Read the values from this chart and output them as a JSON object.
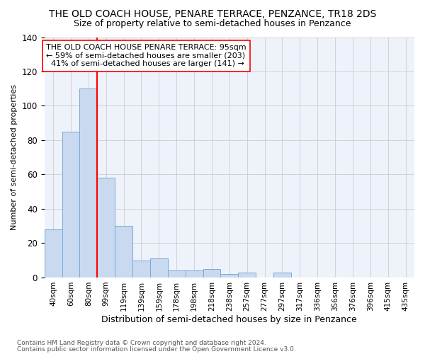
{
  "title": "THE OLD COACH HOUSE, PENARE TERRACE, PENZANCE, TR18 2DS",
  "subtitle": "Size of property relative to semi-detached houses in Penzance",
  "xlabel": "Distribution of semi-detached houses by size in Penzance",
  "ylabel": "Number of semi-detached properties",
  "bar_labels": [
    "40sqm",
    "60sqm",
    "80sqm",
    "99sqm",
    "119sqm",
    "139sqm",
    "159sqm",
    "178sqm",
    "198sqm",
    "218sqm",
    "238sqm",
    "257sqm",
    "277sqm",
    "297sqm",
    "317sqm",
    "336sqm",
    "356sqm",
    "376sqm",
    "396sqm",
    "415sqm",
    "435sqm"
  ],
  "bar_values": [
    28,
    85,
    110,
    58,
    30,
    10,
    11,
    4,
    4,
    5,
    2,
    3,
    0,
    3,
    0,
    0,
    0,
    0,
    0,
    0,
    0
  ],
  "bar_color": "#c9d9f0",
  "bar_edge_color": "#7baad4",
  "vline_x_index": 3,
  "vline_color": "red",
  "annotation_text": "THE OLD COACH HOUSE PENARE TERRACE: 95sqm\n← 59% of semi-detached houses are smaller (203)\n  41% of semi-detached houses are larger (141) →",
  "annotation_box_color": "white",
  "annotation_box_edge_color": "red",
  "ylim": [
    0,
    140
  ],
  "yticks": [
    0,
    20,
    40,
    60,
    80,
    100,
    120,
    140
  ],
  "footer_line1": "Contains HM Land Registry data © Crown copyright and database right 2024.",
  "footer_line2": "Contains public sector information licensed under the Open Government Licence v3.0.",
  "grid_color": "#cccccc",
  "background_color": "#eef2fa",
  "title_fontsize": 10,
  "subtitle_fontsize": 9,
  "annotation_fontsize": 8
}
